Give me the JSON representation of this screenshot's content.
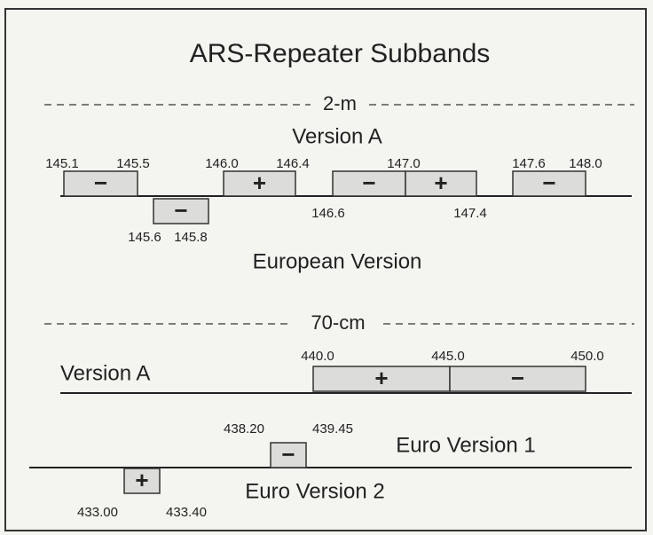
{
  "title": "ARS-Repeater Subbands",
  "bands": [
    {
      "name": "2-m",
      "rows": [
        {
          "label": "Version A",
          "segments": [
            "−",
            "−",
            "+",
            "−",
            "+",
            "−"
          ],
          "freqs": [
            "145.1",
            "145.5",
            "145.6",
            "145.8",
            "146.0",
            "146.4",
            "146.6",
            "147.0",
            "147.4",
            "147.6",
            "148.0"
          ]
        },
        {
          "label": "European Version",
          "segments": [],
          "freqs": []
        }
      ]
    },
    {
      "name": "70-cm",
      "rows": [
        {
          "label": "Version A",
          "segments": [
            "+",
            "−"
          ],
          "freqs": [
            "440.0",
            "445.0",
            "450.0"
          ]
        },
        {
          "label": "Euro Version 1",
          "segments": [
            "−"
          ],
          "freqs": [
            "438.20",
            "439.45"
          ]
        },
        {
          "label": "Euro Version 2",
          "segments": [
            "+"
          ],
          "freqs": [
            "433.00",
            "433.40"
          ]
        }
      ]
    }
  ]
}
